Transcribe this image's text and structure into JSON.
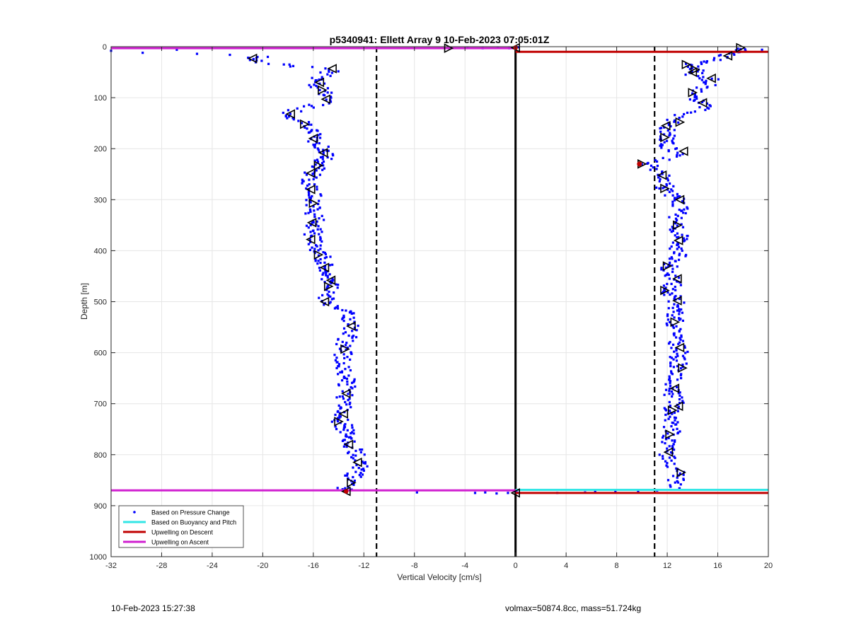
{
  "chart_data": {
    "type": "scatter",
    "title": "p5340941: Ellett Array 9 10-Feb-2023 07:05:01Z",
    "xlabel": "Vertical Velocity [cm/s]",
    "ylabel": "Depth [m]",
    "xlim": [
      -32,
      20
    ],
    "ylim": [
      0,
      1000
    ],
    "y_reversed": true,
    "grid": true,
    "xticks": [
      -32,
      -28,
      -24,
      -20,
      -16,
      -12,
      -8,
      -4,
      0,
      4,
      8,
      12,
      16,
      20
    ],
    "yticks": [
      0,
      100,
      200,
      300,
      400,
      500,
      600,
      700,
      800,
      900,
      1000
    ],
    "legend": {
      "placement": "bottom-left",
      "entries": [
        {
          "label": "Based on Pressure Change",
          "color": "#0000ff",
          "marker": "dot"
        },
        {
          "label": "Based on Buoyancy and Pitch",
          "color": "#33e6e6",
          "marker": "line"
        },
        {
          "label": "Upwelling on Descent",
          "color": "#c00000",
          "marker": "line"
        },
        {
          "label": "Upwelling on Ascent",
          "color": "#d020d0",
          "marker": "line"
        }
      ]
    },
    "reference_lines": {
      "dashed_x": [
        -11,
        11
      ],
      "solid_x": [
        0
      ]
    },
    "horizontal_lines": [
      {
        "series": "Upwelling on Ascent",
        "depth": 3,
        "x": [
          -32,
          0
        ],
        "color": "#d020d0"
      },
      {
        "series": "Upwelling on Descent",
        "depth": 10,
        "x": [
          0,
          20
        ],
        "color": "#c00000"
      },
      {
        "series": "Upwelling on Ascent",
        "depth": 870,
        "x": [
          -32,
          0
        ],
        "color": "#d020d0"
      },
      {
        "series": "Based on Buoyancy and Pitch",
        "depth": 869,
        "x": [
          0,
          20
        ],
        "color": "#33e6e6"
      },
      {
        "series": "Upwelling on Descent",
        "depth": 875,
        "x": [
          0,
          20
        ],
        "color": "#c00000"
      }
    ],
    "ascent_profile": {
      "depth": [
        20,
        30,
        45,
        60,
        70,
        85,
        95,
        105,
        115,
        125,
        135,
        145,
        155,
        170,
        180,
        195,
        210,
        225,
        240,
        250,
        265,
        280,
        295,
        310,
        325,
        340,
        355,
        375,
        395,
        410,
        430,
        450,
        465,
        480,
        495,
        505,
        520,
        535,
        550,
        565,
        580,
        595,
        610,
        625,
        640,
        655,
        670,
        685,
        700,
        715,
        730,
        745,
        760,
        775,
        790,
        805,
        820,
        835,
        850,
        860,
        870
      ],
      "velocity": [
        -20.5,
        -20.8,
        -14.5,
        -15.5,
        -15.8,
        -15.3,
        -15.0,
        -14.5,
        -16.0,
        -17.5,
        -18.2,
        -17.0,
        -16.5,
        -15.8,
        -16.0,
        -15.5,
        -15.0,
        -15.3,
        -15.8,
        -16.2,
        -16.3,
        -16.2,
        -16.0,
        -16.0,
        -15.9,
        -15.8,
        -16.1,
        -16.0,
        -15.7,
        -15.4,
        -15.2,
        -14.8,
        -14.5,
        -14.6,
        -14.9,
        -15.0,
        -13.2,
        -13.0,
        -13.1,
        -13.3,
        -13.5,
        -13.6,
        -13.7,
        -13.6,
        -13.5,
        -13.4,
        -13.3,
        -13.5,
        -13.7,
        -13.4,
        -14.0,
        -13.6,
        -13.2,
        -13.1,
        -12.8,
        -12.5,
        -12.3,
        -12.6,
        -13.0,
        -13.3,
        -13.5
      ]
    },
    "descent_profile": {
      "depth": [
        5,
        20,
        35,
        45,
        55,
        65,
        75,
        85,
        95,
        110,
        120,
        135,
        150,
        165,
        180,
        195,
        210,
        225,
        230,
        240,
        255,
        270,
        285,
        300,
        315,
        330,
        345,
        360,
        375,
        390,
        405,
        420,
        435,
        450,
        465,
        480,
        495,
        510,
        525,
        540,
        555,
        570,
        585,
        600,
        615,
        630,
        645,
        660,
        675,
        690,
        705,
        720,
        735,
        750,
        765,
        780,
        795,
        810,
        825,
        840,
        855,
        868
      ],
      "velocity": [
        17.5,
        16.5,
        14.0,
        14.5,
        14.0,
        15.5,
        15.2,
        14.5,
        14.0,
        14.8,
        15.0,
        13.0,
        12.2,
        12.0,
        11.8,
        12.0,
        13.0,
        11.5,
        10.5,
        11.2,
        11.6,
        11.8,
        12.0,
        12.8,
        13.0,
        12.9,
        12.6,
        12.8,
        13.0,
        12.9,
        13.0,
        12.5,
        12.0,
        12.4,
        12.6,
        12.0,
        12.7,
        12.8,
        12.7,
        12.6,
        12.5,
        12.6,
        12.8,
        13.0,
        12.8,
        12.9,
        12.7,
        12.5,
        12.4,
        12.6,
        12.5,
        12.5,
        12.3,
        12.4,
        12.3,
        12.2,
        12.0,
        12.1,
        12.5,
        12.9,
        12.7,
        12.6
      ]
    },
    "surface_scatter": {
      "x": [
        -32,
        -29.5,
        -26.8,
        -25.2,
        -22.6,
        -20.5,
        -19.6,
        -5.2,
        -3.8,
        -2.6,
        -1.4,
        -0.5,
        0.2,
        17.8,
        18.2,
        19.5
      ],
      "depth": [
        8,
        12,
        6,
        14,
        16,
        22,
        20,
        3,
        2,
        3,
        2,
        3,
        1,
        5,
        8,
        6
      ]
    },
    "bottom_scatter": {
      "x": [
        -13.4,
        -7.8,
        -3.2,
        -2.4,
        -1.5,
        -0.6,
        0.1,
        3.3,
        5.5,
        6.3,
        7.9,
        9.7,
        11.2
      ],
      "depth": [
        872,
        874,
        875,
        874,
        876,
        875,
        874,
        875,
        874,
        873,
        872,
        871,
        870
      ]
    },
    "triangles_left": {
      "x": [
        -20.8,
        -5.3,
        -14.5,
        -15.5,
        -15.3,
        -15.0,
        -17.8,
        -16.7,
        -16.0,
        -15.2,
        -15.6,
        -16.2,
        -16.2,
        -16.0,
        -16.1,
        -16.2,
        -15.6,
        -15.1,
        -14.6,
        -14.8,
        -15.1,
        -13.0,
        -13.5,
        -13.4,
        -13.6,
        -14.0,
        -13.2,
        -12.5,
        -13.0,
        -13.4,
        0.0
      ],
      "depth": [
        23,
        3,
        43,
        70,
        85,
        103,
        132,
        152,
        180,
        208,
        233,
        248,
        280,
        307,
        345,
        378,
        408,
        433,
        458,
        470,
        500,
        548,
        593,
        680,
        720,
        735,
        780,
        815,
        855,
        872,
        875
      ]
    },
    "triangles_right": {
      "x": [
        17.8,
        16.8,
        13.5,
        14.0,
        14.2,
        15.5,
        14.0,
        14.8,
        13.0,
        11.9,
        11.8,
        13.3,
        10.0,
        11.6,
        11.8,
        13.0,
        12.8,
        12.9,
        12.0,
        12.8,
        11.8,
        12.8,
        12.6,
        13.0,
        13.2,
        12.6,
        12.4,
        12.9,
        12.2,
        12.1,
        13.1,
        0.0
      ],
      "depth": [
        2,
        18,
        35,
        50,
        45,
        62,
        90,
        110,
        148,
        155,
        178,
        205,
        230,
        252,
        278,
        300,
        350,
        380,
        430,
        455,
        478,
        498,
        540,
        590,
        630,
        670,
        713,
        705,
        760,
        795,
        835,
        2
      ]
    }
  },
  "footer": {
    "timestamp": "10-Feb-2023 15:27:38",
    "metrics": "volmax=50874.8cc, mass=51.724kg"
  }
}
